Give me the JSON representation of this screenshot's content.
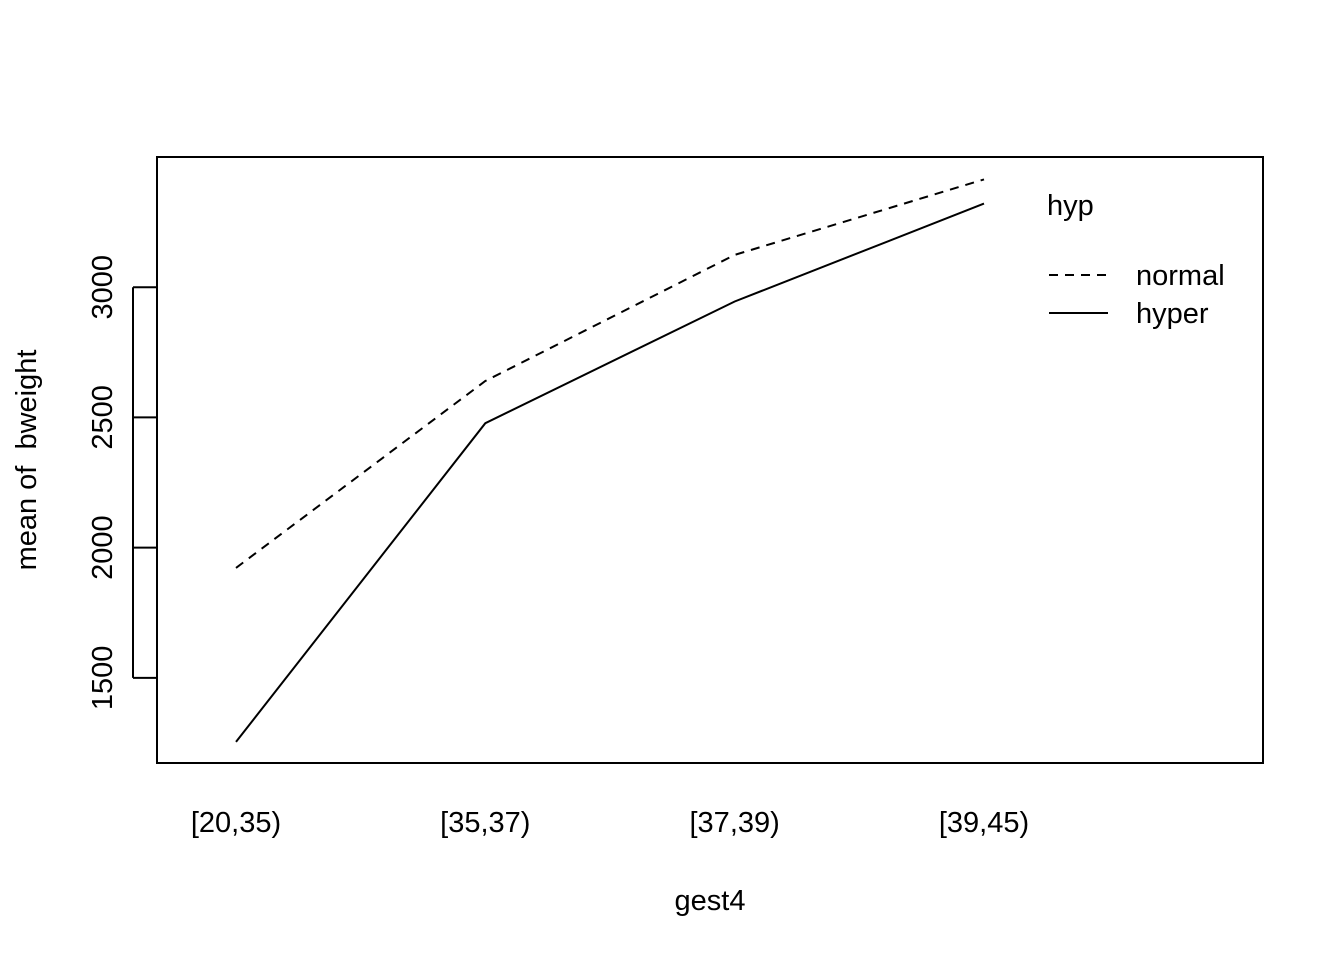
{
  "chart_data": {
    "type": "line",
    "title": "",
    "xlabel": "gest4",
    "ylabel": "mean of  bweight",
    "categories": [
      "[20,35)",
      "[35,37)",
      "[37,39)",
      "[39,45)"
    ],
    "series": [
      {
        "name": "normal",
        "line_style": "dashed",
        "values": [
          1922,
          2640,
          3124,
          3414
        ]
      },
      {
        "name": "hyper",
        "line_style": "solid",
        "values": [
          1254,
          2478,
          2945,
          3321
        ]
      }
    ],
    "yticks": [
      1500,
      2000,
      2500,
      3000
    ],
    "ylim": [
      1173,
      3500
    ],
    "grid": false,
    "legend": {
      "title": "hyp",
      "placement": "top-right",
      "entries": [
        "normal",
        "hyper"
      ]
    },
    "colors": {
      "lines": "#000000",
      "background": "#ffffff"
    }
  }
}
